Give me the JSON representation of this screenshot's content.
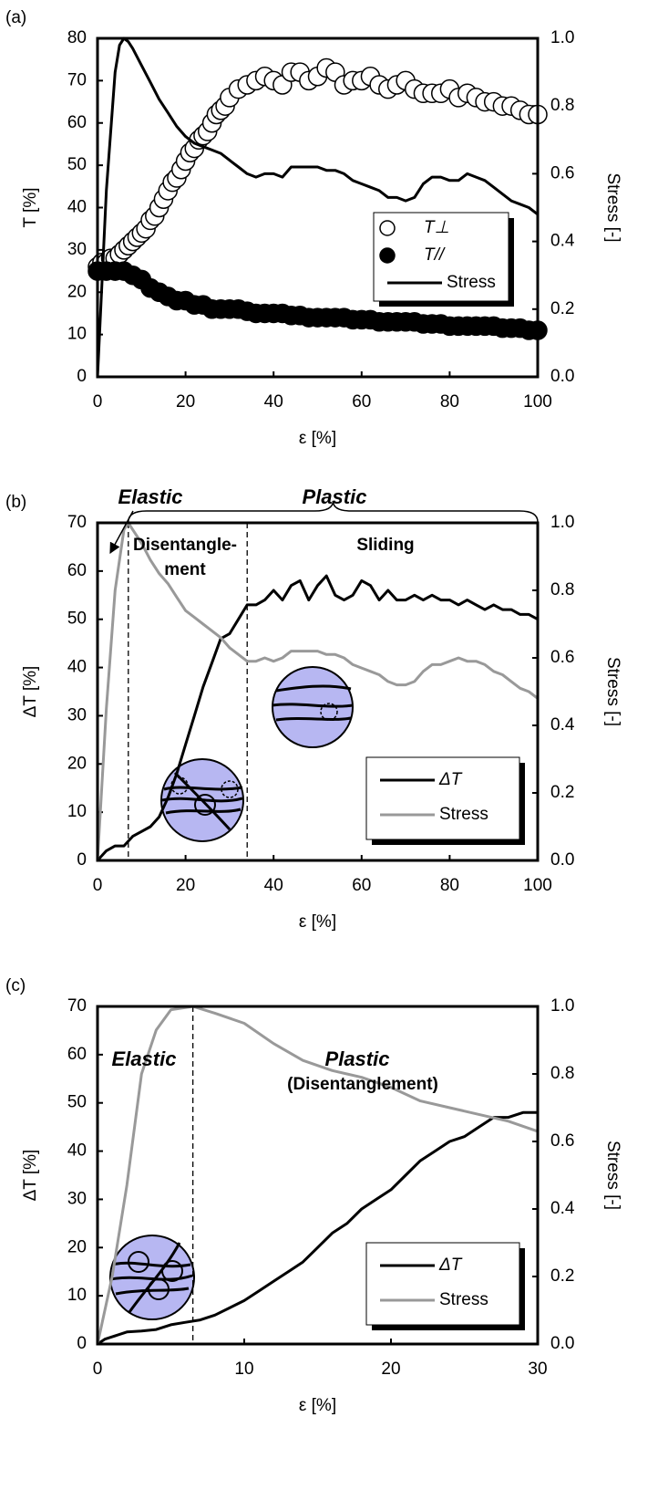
{
  "chart_data": [
    {
      "type": "line",
      "panel_label": "(a)",
      "xlabel": "ε [%]",
      "ylabel": "T [%]",
      "y2label": "Stress [-]",
      "xlim": [
        0,
        100
      ],
      "xticks": [
        0,
        20,
        40,
        60,
        80,
        100
      ],
      "ylim": [
        0,
        80
      ],
      "yticks": [
        0,
        10,
        20,
        30,
        40,
        50,
        60,
        70,
        80
      ],
      "y2lim": [
        0,
        1
      ],
      "y2ticks": [
        {
          "value": 0,
          "label": "0.0"
        },
        0.2,
        0.4,
        0.6,
        0.8,
        {
          "value": 1,
          "label": "1.0"
        }
      ],
      "annotations": [],
      "series": [
        {
          "name": "T⊥",
          "type": "scatter",
          "marker": "open",
          "color": "#000000",
          "x": [
            0,
            1,
            2,
            3,
            4,
            5,
            6,
            7,
            8,
            9,
            10,
            11,
            12,
            13,
            14,
            15,
            16,
            17,
            18,
            19,
            20,
            21,
            22,
            23,
            24,
            25,
            26,
            27,
            28,
            29,
            30,
            32,
            34,
            36,
            38,
            40,
            42,
            44,
            46,
            48,
            50,
            52,
            54,
            56,
            58,
            60,
            62,
            64,
            66,
            68,
            70,
            72,
            74,
            76,
            78,
            80,
            82,
            84,
            86,
            88,
            90,
            92,
            94,
            96,
            98,
            100
          ],
          "values": [
            26,
            27,
            27,
            28,
            28,
            29,
            30,
            31,
            32,
            33,
            34,
            35,
            37,
            38,
            40,
            42,
            44,
            46,
            47,
            49,
            51,
            53,
            54,
            56,
            57,
            58,
            60,
            62,
            63,
            64,
            66,
            68,
            69,
            70,
            71,
            70,
            69,
            72,
            72,
            70,
            71,
            73,
            72,
            69,
            70,
            70,
            71,
            69,
            68,
            69,
            70,
            68,
            67,
            67,
            67,
            68,
            66,
            67,
            66,
            65,
            65,
            64,
            64,
            63,
            62,
            62
          ]
        },
        {
          "name": "T//",
          "type": "scatter",
          "marker": "filled",
          "color": "#000000",
          "x": [
            0,
            2,
            4,
            6,
            8,
            10,
            12,
            14,
            16,
            18,
            20,
            22,
            24,
            26,
            28,
            30,
            32,
            34,
            36,
            38,
            40,
            42,
            44,
            46,
            48,
            50,
            52,
            54,
            56,
            58,
            60,
            62,
            64,
            66,
            68,
            70,
            72,
            74,
            76,
            78,
            80,
            82,
            84,
            86,
            88,
            90,
            92,
            94,
            96,
            98,
            100
          ],
          "values": [
            25,
            25,
            25,
            25,
            24,
            23,
            21,
            20,
            19,
            18,
            18,
            17,
            17,
            16,
            16,
            16,
            16,
            15.5,
            15,
            15,
            15,
            15,
            14.5,
            14.5,
            14,
            14,
            14,
            14,
            14,
            13.5,
            13.5,
            13.5,
            13,
            13,
            13,
            13,
            13,
            12.5,
            12.5,
            12.5,
            12,
            12,
            12,
            12,
            12,
            12,
            11.5,
            11.5,
            11.5,
            11,
            11
          ]
        },
        {
          "name": "Stress",
          "type": "line",
          "axis": "y2",
          "color": "#000000",
          "x": [
            0,
            2,
            4,
            5,
            6,
            7,
            8,
            10,
            12,
            14,
            16,
            18,
            20,
            22,
            24,
            26,
            28,
            30,
            32,
            34,
            36,
            38,
            40,
            42,
            44,
            46,
            48,
            50,
            52,
            54,
            56,
            58,
            60,
            62,
            64,
            66,
            68,
            70,
            72,
            74,
            76,
            78,
            80,
            82,
            84,
            86,
            88,
            90,
            92,
            94,
            96,
            98,
            100
          ],
          "values": [
            0,
            0.55,
            0.9,
            0.98,
            1.0,
            0.99,
            0.97,
            0.92,
            0.87,
            0.82,
            0.78,
            0.74,
            0.71,
            0.69,
            0.68,
            0.67,
            0.66,
            0.64,
            0.62,
            0.6,
            0.59,
            0.6,
            0.6,
            0.59,
            0.62,
            0.62,
            0.62,
            0.62,
            0.61,
            0.61,
            0.6,
            0.58,
            0.57,
            0.56,
            0.55,
            0.53,
            0.53,
            0.52,
            0.53,
            0.57,
            0.59,
            0.59,
            0.58,
            0.58,
            0.6,
            0.59,
            0.58,
            0.56,
            0.54,
            0.52,
            0.51,
            0.5,
            0.48
          ]
        }
      ]
    },
    {
      "type": "line",
      "panel_label": "(b)",
      "xlabel": "ε [%]",
      "ylabel": "ΔT [%]",
      "y2label": "Stress [-]",
      "xlim": [
        0,
        100
      ],
      "xticks": [
        0,
        20,
        40,
        60,
        80,
        100
      ],
      "ylim": [
        0,
        70
      ],
      "yticks": [
        0,
        10,
        20,
        30,
        40,
        50,
        60,
        70
      ],
      "y2lim": [
        0,
        1
      ],
      "y2ticks": [
        {
          "value": 0,
          "label": "0.0"
        },
        0.2,
        0.4,
        0.6,
        0.8,
        {
          "value": 1,
          "label": "1.0"
        }
      ],
      "vlines": [
        7,
        34
      ],
      "annotations": [
        "Elastic",
        "Plastic",
        "Disentangle-",
        "ment",
        "Sliding"
      ],
      "series": [
        {
          "name": "ΔT",
          "type": "line",
          "color": "#000000",
          "x": [
            0,
            2,
            4,
            6,
            8,
            10,
            12,
            14,
            16,
            18,
            20,
            22,
            24,
            26,
            28,
            30,
            32,
            34,
            36,
            38,
            40,
            42,
            44,
            46,
            48,
            50,
            52,
            54,
            56,
            58,
            60,
            62,
            64,
            66,
            68,
            70,
            72,
            74,
            76,
            78,
            80,
            82,
            84,
            86,
            88,
            90,
            92,
            94,
            96,
            98,
            100
          ],
          "values": [
            0,
            2,
            3,
            3,
            5,
            6,
            7,
            9,
            13,
            18,
            24,
            30,
            36,
            41,
            46,
            47,
            50,
            53,
            53,
            54,
            56,
            54,
            57,
            58,
            54,
            57,
            59,
            55,
            54,
            55,
            58,
            57,
            54,
            56,
            54,
            54,
            55,
            54,
            55,
            54,
            54,
            53,
            54,
            53,
            52,
            53,
            52,
            52,
            51,
            51,
            50
          ]
        },
        {
          "name": "Stress",
          "type": "line",
          "axis": "y2",
          "color": "#999999",
          "x": [
            0,
            2,
            4,
            6,
            7,
            8,
            10,
            12,
            14,
            16,
            18,
            20,
            22,
            24,
            26,
            28,
            30,
            32,
            34,
            36,
            38,
            40,
            42,
            44,
            46,
            48,
            50,
            52,
            54,
            56,
            58,
            60,
            62,
            64,
            66,
            68,
            70,
            72,
            74,
            76,
            78,
            80,
            82,
            84,
            86,
            88,
            90,
            92,
            94,
            96,
            98,
            100
          ],
          "values": [
            0,
            0.45,
            0.8,
            0.98,
            1.0,
            0.98,
            0.94,
            0.89,
            0.85,
            0.82,
            0.78,
            0.74,
            0.72,
            0.7,
            0.68,
            0.66,
            0.63,
            0.61,
            0.59,
            0.59,
            0.6,
            0.59,
            0.6,
            0.62,
            0.62,
            0.62,
            0.62,
            0.61,
            0.61,
            0.6,
            0.58,
            0.57,
            0.56,
            0.55,
            0.53,
            0.52,
            0.52,
            0.53,
            0.56,
            0.58,
            0.58,
            0.59,
            0.6,
            0.59,
            0.59,
            0.58,
            0.56,
            0.55,
            0.53,
            0.51,
            0.5,
            0.48
          ]
        }
      ]
    },
    {
      "type": "line",
      "panel_label": "(c)",
      "xlabel": "ε [%]",
      "ylabel": "ΔT [%]",
      "y2label": "Stress [-]",
      "xlim": [
        0,
        30
      ],
      "xticks": [
        0,
        10,
        20,
        30
      ],
      "ylim": [
        0,
        70
      ],
      "yticks": [
        0,
        10,
        20,
        30,
        40,
        50,
        60,
        70
      ],
      "y2lim": [
        0,
        1
      ],
      "y2ticks": [
        {
          "value": 0,
          "label": "0.0"
        },
        0.2,
        0.4,
        0.6,
        0.8,
        {
          "value": 1,
          "label": "1.0"
        }
      ],
      "vlines": [
        6.5
      ],
      "annotations": [
        "Elastic",
        "Plastic",
        "(Disentanglement)"
      ],
      "series": [
        {
          "name": "ΔT",
          "type": "line",
          "color": "#000000",
          "x": [
            0,
            0.5,
            1,
            2,
            3,
            4,
            5,
            6,
            7,
            8,
            9,
            10,
            11,
            12,
            13,
            14,
            15,
            16,
            17,
            18,
            19,
            20,
            21,
            22,
            23,
            24,
            25,
            26,
            27,
            28,
            29,
            30
          ],
          "values": [
            0,
            1,
            1.5,
            2.5,
            2.7,
            3,
            4,
            4.5,
            5,
            6,
            7.5,
            9,
            11,
            13,
            15,
            17,
            20,
            23,
            25,
            28,
            30,
            32,
            35,
            38,
            40,
            42,
            43,
            45,
            47,
            47,
            48,
            48
          ]
        },
        {
          "name": "Stress",
          "type": "line",
          "axis": "y2",
          "color": "#999999",
          "x": [
            0,
            1,
            2,
            3,
            4,
            5,
            6.5,
            8,
            10,
            12,
            14,
            16,
            18,
            20,
            22,
            24,
            26,
            28,
            30
          ],
          "values": [
            0,
            0.2,
            0.47,
            0.8,
            0.93,
            0.99,
            1.0,
            0.98,
            0.95,
            0.89,
            0.84,
            0.81,
            0.79,
            0.76,
            0.72,
            0.7,
            0.68,
            0.66,
            0.63
          ]
        }
      ]
    }
  ]
}
